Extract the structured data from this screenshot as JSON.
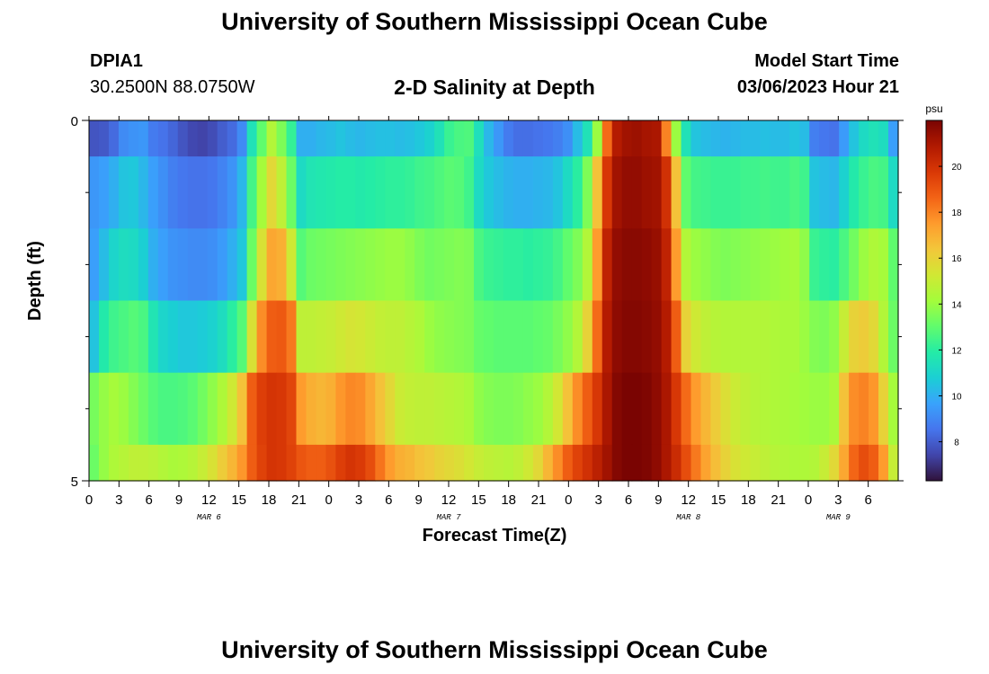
{
  "header": {
    "title": "University of Southern Mississippi Ocean Cube",
    "station_id": "DPIA1",
    "coordinates": "30.2500N  88.0750W",
    "subtitle": "2-D Salinity at Depth",
    "model_start_label": "Model Start Time",
    "model_start_value": "03/06/2023 Hour 21"
  },
  "footer": {
    "title": "University of Southern Mississippi Ocean Cube"
  },
  "chart_data": {
    "type": "heatmap",
    "xlabel": "Forecast Time(Z)",
    "ylabel": "Depth (ft)",
    "colorbar_label": "psu",
    "colorbar_ticks": [
      8,
      10,
      12,
      14,
      16,
      18,
      20
    ],
    "value_range": [
      6.3,
      22
    ],
    "x_hours": [
      0,
      81
    ],
    "x_tick_labels": [
      "0",
      "3",
      "6",
      "9",
      "12",
      "15",
      "18",
      "21",
      "0",
      "3",
      "6",
      "9",
      "12",
      "15",
      "18",
      "21",
      "0",
      "3",
      "6",
      "9",
      "12",
      "15",
      "18",
      "21",
      "0",
      "3",
      "6"
    ],
    "date_labels": [
      {
        "text": "MAR 6",
        "hour": 12
      },
      {
        "text": "MAR 7",
        "hour": 36
      },
      {
        "text": "MAR 8",
        "hour": 60
      },
      {
        "text": "MAR 9",
        "hour": 75
      }
    ],
    "y_tick_labels": [
      "0",
      "5"
    ],
    "ylim": [
      0,
      5
    ],
    "colormap": [
      "#30123b",
      "#4145ab",
      "#4675ed",
      "#39a2fc",
      "#1bcfd4",
      "#24eca6",
      "#61fc6c",
      "#a4fc3b",
      "#d1e834",
      "#f3c63a",
      "#fe9b2d",
      "#f36315",
      "#d93806",
      "#b11901",
      "#7a0402"
    ],
    "bands": [
      {
        "depth": [
          0.0,
          0.5
        ],
        "values": [
          7.8,
          7.9,
          8.3,
          9.1,
          9.3,
          9.4,
          8.7,
          8.5,
          8.2,
          7.8,
          7.5,
          7.4,
          7.6,
          8.0,
          8.3,
          9.1,
          11.5,
          13.0,
          14.5,
          13.5,
          12.2,
          10.0,
          10.0,
          10.2,
          10.3,
          10.5,
          10.3,
          10.2,
          10.3,
          10.4,
          10.4,
          10.3,
          10.4,
          10.6,
          10.9,
          11.5,
          12.3,
          12.6,
          12.7,
          11.4,
          10.2,
          9.4,
          8.7,
          8.4,
          8.4,
          8.5,
          8.6,
          8.8,
          9.2,
          10.3,
          11.5,
          14.0,
          18.5,
          20.8,
          21.2,
          21.3,
          21.1,
          21.0,
          18.0,
          14.0,
          11.5,
          10.5,
          10.3,
          10.2,
          10.1,
          10.2,
          10.3,
          10.3,
          10.4,
          10.3,
          10.3,
          10.5,
          10.3,
          8.8,
          8.6,
          8.5,
          9.5,
          10.5,
          11.2,
          11.5,
          11.3,
          9.6
        ]
      },
      {
        "depth": [
          0.5,
          1.5
        ],
        "values": [
          9.4,
          9.6,
          10.0,
          10.5,
          10.6,
          10.2,
          9.6,
          9.2,
          8.8,
          8.6,
          8.5,
          8.5,
          8.6,
          8.9,
          9.3,
          10.2,
          12.5,
          14.2,
          15.8,
          14.8,
          13.2,
          11.2,
          11.6,
          11.7,
          11.8,
          11.9,
          11.9,
          11.8,
          11.9,
          12.0,
          12.1,
          12.1,
          12.2,
          12.4,
          12.5,
          12.7,
          12.9,
          12.8,
          12.4,
          11.2,
          10.6,
          10.3,
          10.1,
          10.0,
          10.0,
          10.1,
          10.2,
          10.5,
          11.2,
          12.0,
          13.5,
          16.5,
          19.8,
          21.2,
          21.5,
          21.5,
          21.3,
          21.2,
          20.0,
          16.5,
          13.0,
          12.5,
          12.4,
          12.3,
          12.3,
          12.3,
          12.4,
          12.4,
          12.5,
          12.4,
          12.4,
          12.6,
          12.4,
          10.5,
          10.3,
          10.2,
          10.9,
          11.8,
          12.3,
          12.6,
          12.5,
          11.2
        ]
      },
      {
        "depth": [
          1.5,
          2.5
        ],
        "values": [
          9.6,
          10.3,
          11.0,
          11.3,
          11.2,
          10.8,
          10.0,
          9.6,
          9.3,
          9.2,
          9.1,
          9.1,
          9.2,
          9.5,
          10.0,
          10.6,
          13.2,
          15.5,
          17.2,
          17.0,
          15.2,
          12.8,
          13.2,
          13.3,
          13.4,
          13.5,
          13.6,
          13.7,
          13.8,
          13.9,
          14.0,
          14.0,
          13.8,
          13.5,
          13.3,
          13.4,
          13.5,
          13.6,
          13.5,
          12.6,
          12.3,
          12.2,
          12.1,
          12.1,
          12.0,
          12.1,
          12.2,
          12.5,
          13.0,
          13.5,
          14.5,
          17.5,
          20.5,
          21.5,
          21.7,
          21.7,
          21.6,
          21.4,
          20.5,
          17.5,
          14.5,
          14.0,
          13.8,
          13.6,
          13.5,
          13.6,
          13.7,
          13.8,
          13.9,
          14.0,
          14.1,
          14.2,
          13.8,
          12.3,
          12.1,
          12.0,
          12.6,
          13.3,
          14.0,
          14.4,
          14.2,
          13.0
        ]
      },
      {
        "depth": [
          2.5,
          3.5
        ],
        "values": [
          10.5,
          11.8,
          12.4,
          12.6,
          12.8,
          12.6,
          11.6,
          11.0,
          10.8,
          10.6,
          10.6,
          10.7,
          10.9,
          11.3,
          12.0,
          12.8,
          15.5,
          17.8,
          18.8,
          18.9,
          18.2,
          14.8,
          14.8,
          14.9,
          15.0,
          15.2,
          15.4,
          15.3,
          15.1,
          14.9,
          14.8,
          14.8,
          14.6,
          14.4,
          14.0,
          13.8,
          13.7,
          13.6,
          13.5,
          13.1,
          13.0,
          12.9,
          12.9,
          12.9,
          12.9,
          13.0,
          13.1,
          13.4,
          13.8,
          14.5,
          16.0,
          18.5,
          20.8,
          21.6,
          21.8,
          21.8,
          21.7,
          21.5,
          20.8,
          18.8,
          16.0,
          15.2,
          14.8,
          14.6,
          14.5,
          14.5,
          14.5,
          14.5,
          14.5,
          14.4,
          14.3,
          14.3,
          14.0,
          13.6,
          13.5,
          13.8,
          15.0,
          16.0,
          16.2,
          15.8,
          14.5,
          13.2
        ]
      },
      {
        "depth": [
          3.5,
          4.5
        ],
        "values": [
          13.4,
          13.9,
          14.2,
          14.0,
          13.6,
          13.2,
          12.8,
          12.6,
          12.6,
          12.7,
          12.9,
          13.3,
          13.8,
          14.4,
          15.2,
          16.5,
          18.8,
          19.6,
          19.9,
          19.8,
          19.4,
          17.5,
          17.0,
          16.8,
          17.0,
          17.6,
          17.9,
          17.8,
          17.2,
          16.5,
          15.8,
          15.1,
          14.9,
          14.8,
          14.8,
          14.7,
          14.6,
          14.5,
          14.3,
          13.8,
          13.6,
          13.5,
          13.5,
          13.6,
          13.8,
          14.0,
          14.5,
          15.3,
          16.5,
          17.8,
          18.8,
          19.8,
          21.0,
          21.8,
          22.0,
          22.0,
          21.9,
          21.6,
          21.0,
          19.8,
          18.5,
          17.5,
          16.8,
          16.2,
          15.6,
          15.1,
          14.8,
          14.6,
          14.5,
          14.4,
          14.3,
          14.2,
          14.1,
          14.0,
          14.0,
          14.3,
          16.5,
          17.8,
          18.0,
          17.6,
          16.0,
          14.2
        ]
      },
      {
        "depth": [
          4.5,
          5.0
        ],
        "values": [
          13.2,
          13.9,
          14.4,
          14.6,
          14.8,
          14.8,
          14.7,
          14.5,
          14.3,
          14.4,
          14.6,
          15.0,
          15.5,
          16.2,
          16.8,
          17.6,
          18.8,
          19.5,
          19.9,
          19.8,
          19.5,
          19.0,
          18.8,
          18.8,
          19.1,
          19.6,
          19.9,
          19.7,
          19.2,
          18.3,
          17.5,
          17.0,
          16.8,
          16.5,
          16.3,
          16.0,
          15.8,
          15.6,
          15.3,
          15.0,
          14.8,
          14.7,
          14.6,
          14.8,
          15.2,
          15.8,
          16.8,
          17.8,
          18.8,
          19.5,
          20.0,
          20.6,
          21.2,
          21.8,
          22.0,
          22.0,
          21.9,
          21.6,
          21.0,
          20.2,
          19.2,
          18.2,
          17.3,
          16.6,
          16.0,
          15.5,
          15.2,
          15.0,
          14.8,
          14.6,
          14.5,
          14.4,
          14.4,
          14.5,
          15.0,
          15.8,
          17.2,
          18.6,
          19.2,
          18.8,
          17.5,
          15.0
        ]
      }
    ]
  }
}
